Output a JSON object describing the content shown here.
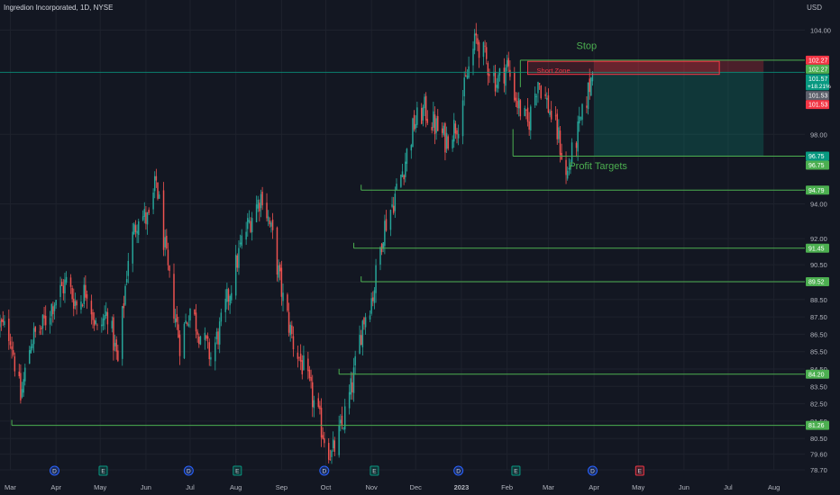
{
  "header": {
    "title": "Ingredion Incorporated, 1D, NYSE",
    "currency": "USD"
  },
  "chart_data": {
    "type": "candlestick",
    "title": "Ingredion Incorporated, 1D, NYSE",
    "ylabel": "USD",
    "ylim": [
      78.7,
      104.8
    ],
    "xlim": [
      "2022-02-22",
      "2023-08-22"
    ],
    "x_ticks": [
      {
        "label": "Mar",
        "date": "2022-03-01",
        "bold": false
      },
      {
        "label": "Apr",
        "date": "2022-04-01",
        "bold": false
      },
      {
        "label": "May",
        "date": "2022-05-01",
        "bold": false
      },
      {
        "label": "Jun",
        "date": "2022-06-01",
        "bold": false
      },
      {
        "label": "Jul",
        "date": "2022-07-01",
        "bold": false
      },
      {
        "label": "Aug",
        "date": "2022-08-01",
        "bold": false
      },
      {
        "label": "Sep",
        "date": "2022-09-01",
        "bold": false
      },
      {
        "label": "Oct",
        "date": "2022-10-01",
        "bold": false
      },
      {
        "label": "Nov",
        "date": "2022-11-01",
        "bold": false
      },
      {
        "label": "Dec",
        "date": "2022-12-01",
        "bold": false
      },
      {
        "label": "2023",
        "date": "2023-01-01",
        "bold": true
      },
      {
        "label": "Feb",
        "date": "2023-02-01",
        "bold": false
      },
      {
        "label": "Mar",
        "date": "2023-03-01",
        "bold": false
      },
      {
        "label": "Apr",
        "date": "2023-04-01",
        "bold": false
      },
      {
        "label": "May",
        "date": "2023-05-01",
        "bold": false
      },
      {
        "label": "Jun",
        "date": "2023-06-01",
        "bold": false
      },
      {
        "label": "Jul",
        "date": "2023-07-01",
        "bold": false
      },
      {
        "label": "Aug",
        "date": "2023-08-01",
        "bold": false
      }
    ],
    "y_ticks": [
      {
        "label": "104.00",
        "value": 104.0
      },
      {
        "label": "98.00",
        "value": 98.0
      },
      {
        "label": "94.00",
        "value": 94.0
      },
      {
        "label": "92.00",
        "value": 92.0
      },
      {
        "label": "90.50",
        "value": 90.5
      },
      {
        "label": "89.50",
        "value": 89.5
      },
      {
        "label": "88.50",
        "value": 88.5
      },
      {
        "label": "87.50",
        "value": 87.5
      },
      {
        "label": "86.50",
        "value": 86.5
      },
      {
        "label": "85.50",
        "value": 85.5
      },
      {
        "label": "84.50",
        "value": 84.5
      },
      {
        "label": "83.50",
        "value": 83.5
      },
      {
        "label": "82.50",
        "value": 82.5
      },
      {
        "label": "81.50",
        "value": 81.5
      },
      {
        "label": "80.50",
        "value": 80.5
      },
      {
        "label": "79.60",
        "value": 79.6
      },
      {
        "label": "78.70",
        "value": 78.7
      }
    ],
    "price_tags": [
      {
        "label": "102.27",
        "value": 102.27,
        "color": "#f23645"
      },
      {
        "label": "102.27",
        "value": 102.27,
        "color": "#4caf50"
      },
      {
        "label": "101.57",
        "value": 101.57,
        "color": "#089981",
        "sub": "+18.21%"
      },
      {
        "label": "101.53",
        "value": 101.53,
        "color": "#5d606b"
      },
      {
        "label": "101.53",
        "value": 101.53,
        "color": "#f23645"
      },
      {
        "label": "96.75",
        "value": 96.75,
        "color": "#089981"
      },
      {
        "label": "96.75",
        "value": 96.75,
        "color": "#4caf50"
      },
      {
        "label": "94.79",
        "value": 94.79,
        "color": "#4caf50"
      },
      {
        "label": "91.45",
        "value": 91.45,
        "color": "#4caf50"
      },
      {
        "label": "89.52",
        "value": 89.52,
        "color": "#4caf50"
      },
      {
        "label": "84.20",
        "value": 84.2,
        "color": "#4caf50"
      },
      {
        "label": "81.26",
        "value": 81.26,
        "color": "#4caf50"
      }
    ],
    "profit_target_lines": [
      {
        "value": 94.79,
        "start": "2022-10-25"
      },
      {
        "value": 91.45,
        "start": "2022-10-20"
      },
      {
        "value": 89.52,
        "start": "2022-10-25"
      },
      {
        "value": 84.2,
        "start": "2022-10-10"
      },
      {
        "value": 81.26,
        "start": "2022-03-02"
      }
    ],
    "trade_levels": [
      {
        "name": "stop",
        "value": 102.27,
        "start": "2023-02-10"
      },
      {
        "name": "entry",
        "value": 101.57,
        "start": "2022-02-22"
      },
      {
        "name": "target",
        "value": 96.75,
        "start": "2023-02-05"
      }
    ],
    "short_position": {
      "start": "2023-04-01",
      "end": "2023-07-25",
      "entry": 101.57,
      "stop": 102.27,
      "target": 96.75
    },
    "short_zone": {
      "label": "Short Zone",
      "start": "2023-02-15",
      "end": "2023-06-25",
      "top": 102.2,
      "bottom": 101.45
    },
    "annotations": [
      {
        "text": "Stop",
        "date": "2023-03-20",
        "value": 102.9,
        "color": "#4caf50"
      },
      {
        "text": "Profit Targets",
        "date": "2023-03-15",
        "value": 96.0,
        "color": "#4caf50"
      }
    ],
    "event_markers": [
      {
        "letter": "D",
        "date": "2022-03-31",
        "type": "dividend"
      },
      {
        "letter": "E",
        "date": "2022-05-03",
        "type": "earnings"
      },
      {
        "letter": "D",
        "date": "2022-06-30",
        "type": "dividend"
      },
      {
        "letter": "E",
        "date": "2022-08-02",
        "type": "earnings"
      },
      {
        "letter": "D",
        "date": "2022-09-30",
        "type": "dividend"
      },
      {
        "letter": "E",
        "date": "2022-11-03",
        "type": "earnings"
      },
      {
        "letter": "D",
        "date": "2022-12-30",
        "type": "dividend"
      },
      {
        "letter": "E",
        "date": "2023-02-07",
        "type": "earnings"
      },
      {
        "letter": "D",
        "date": "2023-03-31",
        "type": "dividend"
      },
      {
        "letter": "E",
        "date": "2023-05-02",
        "type": "earnings"
      }
    ],
    "price_path": [
      {
        "date": "2022-02-22",
        "value": 87.0
      },
      {
        "date": "2022-03-01",
        "value": 86.5
      },
      {
        "date": "2022-03-08",
        "value": 82.8
      },
      {
        "date": "2022-03-15",
        "value": 86.2
      },
      {
        "date": "2022-03-22",
        "value": 86.8
      },
      {
        "date": "2022-03-31",
        "value": 88.5
      },
      {
        "date": "2022-04-08",
        "value": 89.5
      },
      {
        "date": "2022-04-15",
        "value": 88.2
      },
      {
        "date": "2022-04-22",
        "value": 89.2
      },
      {
        "date": "2022-04-29",
        "value": 86.6
      },
      {
        "date": "2022-05-06",
        "value": 87.8
      },
      {
        "date": "2022-05-13",
        "value": 84.8
      },
      {
        "date": "2022-05-20",
        "value": 91.0
      },
      {
        "date": "2022-05-27",
        "value": 93.5
      },
      {
        "date": "2022-06-03",
        "value": 93.0
      },
      {
        "date": "2022-06-08",
        "value": 95.3
      },
      {
        "date": "2022-06-16",
        "value": 90.0
      },
      {
        "date": "2022-06-24",
        "value": 86.0
      },
      {
        "date": "2022-07-01",
        "value": 88.0
      },
      {
        "date": "2022-07-08",
        "value": 86.5
      },
      {
        "date": "2022-07-15",
        "value": 85.2
      },
      {
        "date": "2022-07-22",
        "value": 87.0
      },
      {
        "date": "2022-07-29",
        "value": 89.4
      },
      {
        "date": "2022-08-05",
        "value": 91.8
      },
      {
        "date": "2022-08-12",
        "value": 93.4
      },
      {
        "date": "2022-08-19",
        "value": 94.6
      },
      {
        "date": "2022-08-26",
        "value": 92.0
      },
      {
        "date": "2022-09-02",
        "value": 88.5
      },
      {
        "date": "2022-09-09",
        "value": 86.0
      },
      {
        "date": "2022-09-16",
        "value": 84.5
      },
      {
        "date": "2022-09-23",
        "value": 82.5
      },
      {
        "date": "2022-09-30",
        "value": 80.6
      },
      {
        "date": "2022-10-05",
        "value": 79.5
      },
      {
        "date": "2022-10-12",
        "value": 81.2
      },
      {
        "date": "2022-10-19",
        "value": 83.6
      },
      {
        "date": "2022-10-26",
        "value": 87.2
      },
      {
        "date": "2022-11-02",
        "value": 88.8
      },
      {
        "date": "2022-11-09",
        "value": 92.5
      },
      {
        "date": "2022-11-16",
        "value": 94.2
      },
      {
        "date": "2022-11-23",
        "value": 96.2
      },
      {
        "date": "2022-11-30",
        "value": 98.6
      },
      {
        "date": "2022-12-07",
        "value": 99.4
      },
      {
        "date": "2022-12-14",
        "value": 98.5
      },
      {
        "date": "2022-12-21",
        "value": 97.7
      },
      {
        "date": "2022-12-30",
        "value": 98.8
      },
      {
        "date": "2023-01-06",
        "value": 101.8
      },
      {
        "date": "2023-01-11",
        "value": 103.5
      },
      {
        "date": "2023-01-18",
        "value": 102.2
      },
      {
        "date": "2023-01-25",
        "value": 101.0
      },
      {
        "date": "2023-02-01",
        "value": 102.0
      },
      {
        "date": "2023-02-08",
        "value": 99.8
      },
      {
        "date": "2023-02-15",
        "value": 98.5
      },
      {
        "date": "2023-02-22",
        "value": 101.2
      },
      {
        "date": "2023-03-01",
        "value": 99.6
      },
      {
        "date": "2023-03-08",
        "value": 97.8
      },
      {
        "date": "2023-03-13",
        "value": 95.5
      },
      {
        "date": "2023-03-17",
        "value": 96.8
      },
      {
        "date": "2023-03-24",
        "value": 99.0
      },
      {
        "date": "2023-03-31",
        "value": 101.57
      }
    ]
  }
}
